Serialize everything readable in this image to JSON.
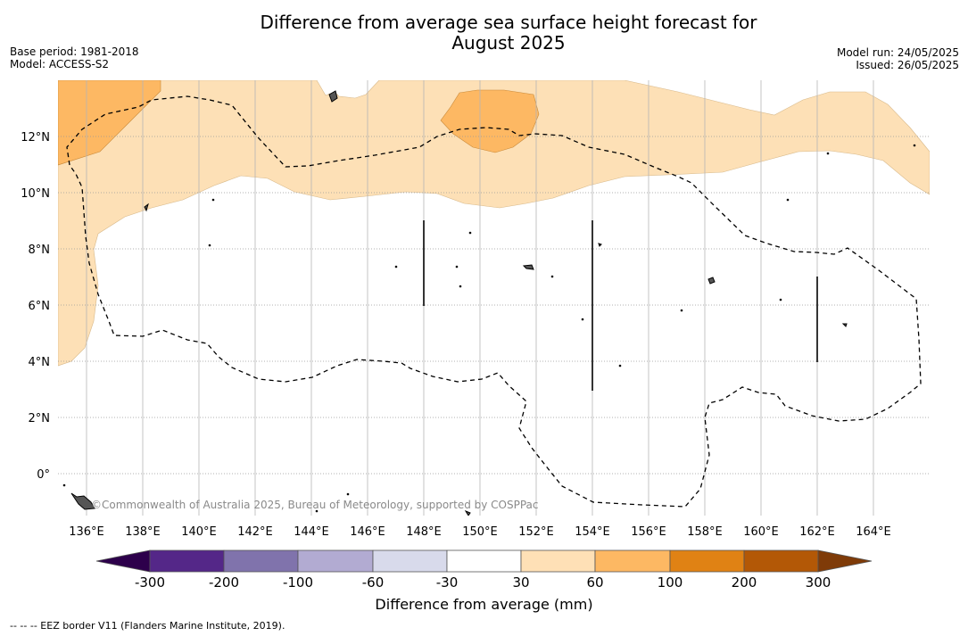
{
  "title_line1": "Difference from average sea surface height forecast for",
  "title_line2": "August 2025",
  "meta": {
    "base_period": "Base period: 1981-2018",
    "model": "Model: ACCESS-S2",
    "model_run": "Model run: 24/05/2025",
    "issued": "Issued: 26/05/2025"
  },
  "axes": {
    "lon_labels": [
      "136°E",
      "138°E",
      "140°E",
      "142°E",
      "144°E",
      "146°E",
      "148°E",
      "150°E",
      "152°E",
      "154°E",
      "156°E",
      "158°E",
      "160°E",
      "162°E",
      "164°E"
    ],
    "lat_labels": [
      "12°N",
      "10°N",
      "8°N",
      "6°N",
      "4°N",
      "2°N",
      "0°"
    ]
  },
  "credit": "©Commonwealth of Australia 2025, Bureau of Meteorology, supported by COSPPac",
  "colorbar": {
    "label": "Difference from average (mm)",
    "ticks": [
      "-300",
      "-200",
      "-100",
      "-60",
      "-30",
      "30",
      "60",
      "100",
      "200",
      "300"
    ],
    "colors": {
      "below": "#2d004b",
      "bins": [
        "#542788",
        "#8073ac",
        "#b2abd2",
        "#d8daeb",
        "#ffffff",
        "#fee0b6",
        "#fdb863",
        "#e08214",
        "#b35806"
      ],
      "above": "#7f3b08"
    }
  },
  "legend_note": "-- -- -- EEZ border V11 (Flanders Marine Institute, 2019)."
}
